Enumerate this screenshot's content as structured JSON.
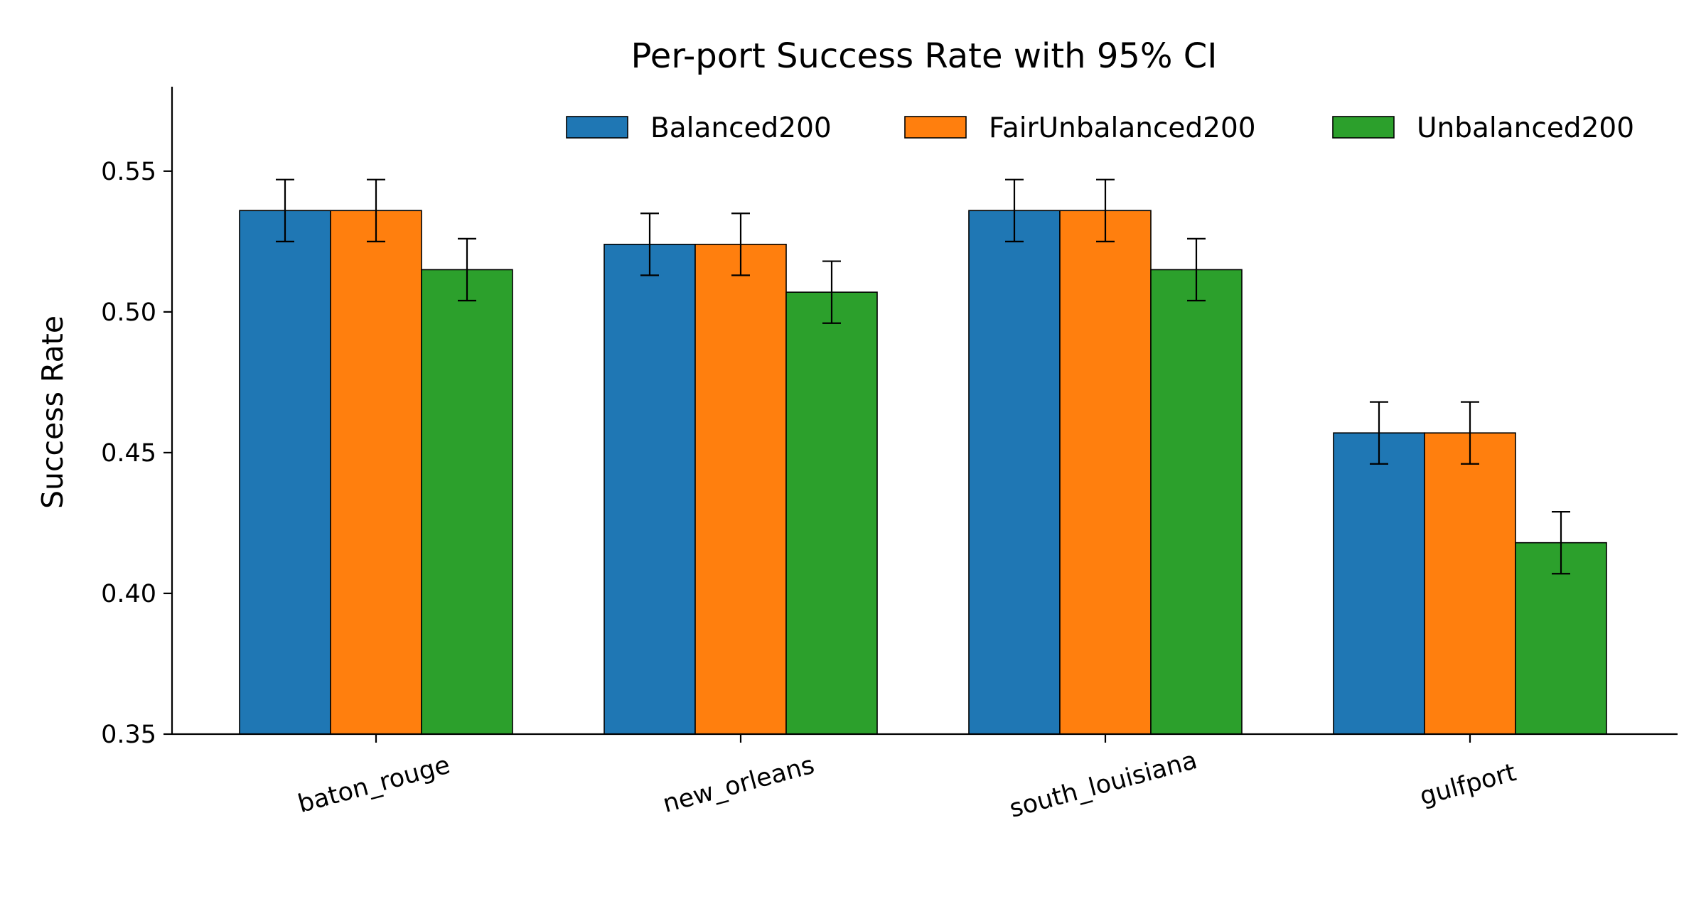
{
  "chart_data": {
    "type": "bar",
    "title": "Per-port Success Rate with 95% CI",
    "xlabel": "",
    "ylabel": "Success Rate",
    "ylim": [
      0.35,
      0.58
    ],
    "yticks": [
      0.35,
      0.4,
      0.45,
      0.5,
      0.55
    ],
    "ytick_labels": [
      "0.35",
      "0.40",
      "0.45",
      "0.50",
      "0.55"
    ],
    "categories": [
      "baton_rouge",
      "new_orleans",
      "south_louisiana",
      "gulfport"
    ],
    "legend_position": "top-right",
    "grid": false,
    "series": [
      {
        "name": "Balanced200",
        "color": "#1f77b4",
        "values": [
          0.536,
          0.524,
          0.536,
          0.457
        ],
        "ci_low": [
          0.525,
          0.513,
          0.525,
          0.446
        ],
        "ci_high": [
          0.547,
          0.535,
          0.547,
          0.468
        ]
      },
      {
        "name": "FairUnbalanced200",
        "color": "#ff7f0e",
        "values": [
          0.536,
          0.524,
          0.536,
          0.457
        ],
        "ci_low": [
          0.525,
          0.513,
          0.525,
          0.446
        ],
        "ci_high": [
          0.547,
          0.535,
          0.547,
          0.468
        ]
      },
      {
        "name": "Unbalanced200",
        "color": "#2ca02c",
        "values": [
          0.515,
          0.507,
          0.515,
          0.418
        ],
        "ci_low": [
          0.504,
          0.496,
          0.504,
          0.407
        ],
        "ci_high": [
          0.526,
          0.518,
          0.526,
          0.429
        ]
      }
    ]
  }
}
